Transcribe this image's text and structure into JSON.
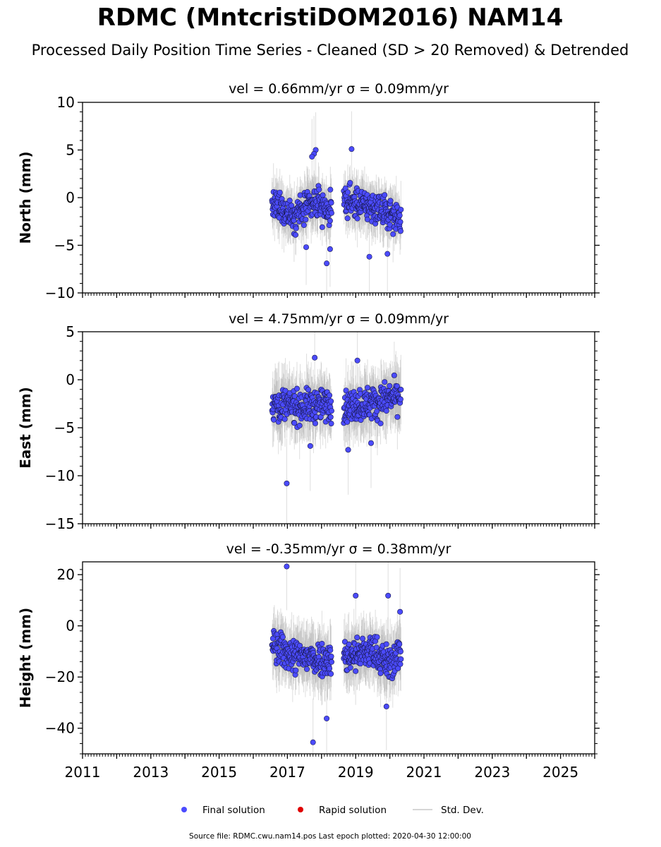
{
  "title": "RDMC (MntcristiDOM2016) NAM14",
  "subtitle": "Processed Daily Position Time Series - Cleaned (SD > 20 Removed) & Detrended",
  "legend": {
    "final": "Final solution",
    "rapid": "Rapid solution",
    "std": "Std. Dev."
  },
  "footer": "Source file: RDMC.cwu.nam14.pos  Last epoch plotted: 2020-04-30 12:00:00",
  "colors": {
    "final": "#4b4bff",
    "rapid": "#e00000",
    "std": "#a0a0a0",
    "edge": "#1a1a4d"
  },
  "chart_data": [
    {
      "type": "scatter",
      "title": "vel = 0.66mm/yr   σ = 0.09mm/yr",
      "ylabel": "North (mm)",
      "xlim": [
        2011,
        2026
      ],
      "ylim": [
        -10,
        10
      ],
      "yticks": [
        10,
        5,
        0,
        -5,
        -10
      ],
      "ytick_labels": [
        "10",
        "5",
        "0",
        "−5",
        "−10"
      ],
      "xticks": [
        2011,
        2013,
        2015,
        2017,
        2019,
        2021,
        2023,
        2025
      ],
      "xtick_labels": [],
      "segments": [
        [
          2016.55,
          2018.3
        ],
        [
          2018.65,
          2020.33
        ]
      ],
      "spread": 1.3,
      "trend": [
        [
          2016.55,
          -0.8
        ],
        [
          2017.2,
          -1.8
        ],
        [
          2017.8,
          -0.5
        ],
        [
          2018.3,
          -1.5
        ],
        [
          2018.65,
          -0.3
        ],
        [
          2019.5,
          -1.0
        ],
        [
          2020.33,
          -2.2
        ]
      ],
      "std_length": 2.2,
      "outliers": [
        [
          2017.83,
          5.0
        ],
        [
          2017.78,
          4.6
        ],
        [
          2017.72,
          4.3
        ],
        [
          2018.88,
          5.1
        ],
        [
          2018.15,
          -6.9
        ],
        [
          2019.4,
          -6.2
        ],
        [
          2019.93,
          -5.9
        ],
        [
          2017.55,
          -5.2
        ],
        [
          2018.25,
          -5.4
        ]
      ]
    },
    {
      "type": "scatter",
      "title": "vel = 4.75mm/yr   σ = 0.09mm/yr",
      "ylabel": "East (mm)",
      "xlim": [
        2011,
        2026
      ],
      "ylim": [
        -15,
        5
      ],
      "yticks": [
        5,
        0,
        -5,
        -10,
        -15
      ],
      "ytick_labels": [
        "5",
        "0",
        "−5",
        "−10",
        "−15"
      ],
      "xticks": [
        2011,
        2013,
        2015,
        2017,
        2019,
        2021,
        2023,
        2025
      ],
      "xtick_labels": [],
      "segments": [
        [
          2016.55,
          2018.3
        ],
        [
          2018.65,
          2020.33
        ]
      ],
      "spread": 1.4,
      "trend": [
        [
          2016.55,
          -2.5
        ],
        [
          2017.3,
          -2.8
        ],
        [
          2018.3,
          -2.6
        ],
        [
          2018.65,
          -2.8
        ],
        [
          2019.5,
          -2.4
        ],
        [
          2020.33,
          -1.6
        ]
      ],
      "std_length": 2.6,
      "outliers": [
        [
          2016.98,
          -10.8
        ],
        [
          2017.8,
          2.3
        ],
        [
          2019.05,
          2.0
        ],
        [
          2018.78,
          -7.3
        ],
        [
          2017.67,
          -6.9
        ],
        [
          2019.45,
          -6.6
        ]
      ]
    },
    {
      "type": "scatter",
      "title": "vel = -0.35mm/yr   σ = 0.38mm/yr",
      "ylabel": "Height (mm)",
      "xlim": [
        2011,
        2026
      ],
      "ylim": [
        -50,
        25
      ],
      "yticks": [
        20,
        0,
        -20,
        -40
      ],
      "ytick_labels": [
        "20",
        "0",
        "−20",
        "−40"
      ],
      "xticks": [
        2011,
        2013,
        2015,
        2017,
        2019,
        2021,
        2023,
        2025
      ],
      "xtick_labels": [
        "2011",
        "2013",
        "2015",
        "2017",
        "2019",
        "2021",
        "2023",
        "2025"
      ],
      "segments": [
        [
          2016.55,
          2018.3
        ],
        [
          2018.65,
          2020.33
        ]
      ],
      "spread": 5.5,
      "trend": [
        [
          2016.55,
          -8.0
        ],
        [
          2017.2,
          -12.0
        ],
        [
          2018.3,
          -13.0
        ],
        [
          2018.65,
          -12.0
        ],
        [
          2019.5,
          -10.0
        ],
        [
          2020.0,
          -15.0
        ],
        [
          2020.33,
          -10.0
        ]
      ],
      "std_length": 9.5,
      "outliers": [
        [
          2016.98,
          23.2
        ],
        [
          2017.75,
          -45.5
        ],
        [
          2018.15,
          -36.2
        ],
        [
          2019.0,
          11.8
        ],
        [
          2019.95,
          11.8
        ],
        [
          2019.9,
          -31.5
        ],
        [
          2020.3,
          5.5
        ]
      ]
    }
  ]
}
